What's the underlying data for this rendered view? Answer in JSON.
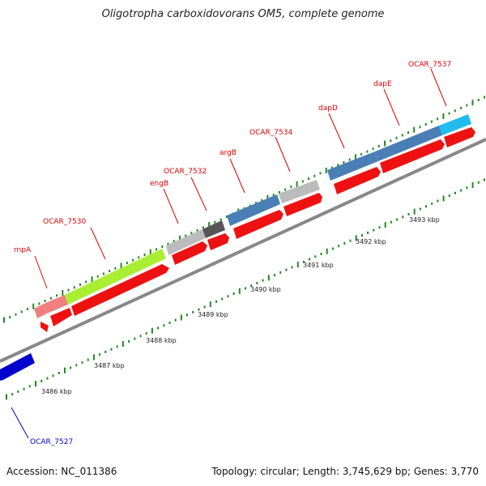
{
  "title": "Oligotropha carboxidovorans OM5, complete genome",
  "accession_text": "Accession: NC_011386",
  "topology_text": "Topology: circular; Length: 3,745,629 bp; Genes: 3,770",
  "scale_labels": [
    "3486 kbp",
    "3487 kbp",
    "3488 kbp",
    "3489 kbp",
    "3490 kbp",
    "3491 kbp",
    "3492 kbp",
    "3493 kbp"
  ],
  "gene_labels": [
    {
      "name": "rnpA",
      "color": "#dd0000"
    },
    {
      "name": "OCAR_7530",
      "color": "#dd0000"
    },
    {
      "name": "engB",
      "color": "#dd0000"
    },
    {
      "name": "OCAR_7532",
      "color": "#dd0000"
    },
    {
      "name": "argB",
      "color": "#dd0000"
    },
    {
      "name": "OCAR_7534",
      "color": "#dd0000"
    },
    {
      "name": "dapD",
      "color": "#dd0000"
    },
    {
      "name": "dapE",
      "color": "#dd0000"
    },
    {
      "name": "OCAR_7537",
      "color": "#dd0000"
    },
    {
      "name": "OCAR_7527",
      "color": "#0000cc"
    }
  ],
  "colors": {
    "cds_red": "#ee1111",
    "gene_blue": "#4a7fb5",
    "gene_green": "#aaee33",
    "gene_gray": "#bbbbbb",
    "gene_dark": "#555555",
    "gene_pink": "#f08080",
    "gene_cyan": "#22bbee",
    "reverse_blue": "#0000cc",
    "tick_green": "#228822",
    "backbone": "#888888"
  }
}
